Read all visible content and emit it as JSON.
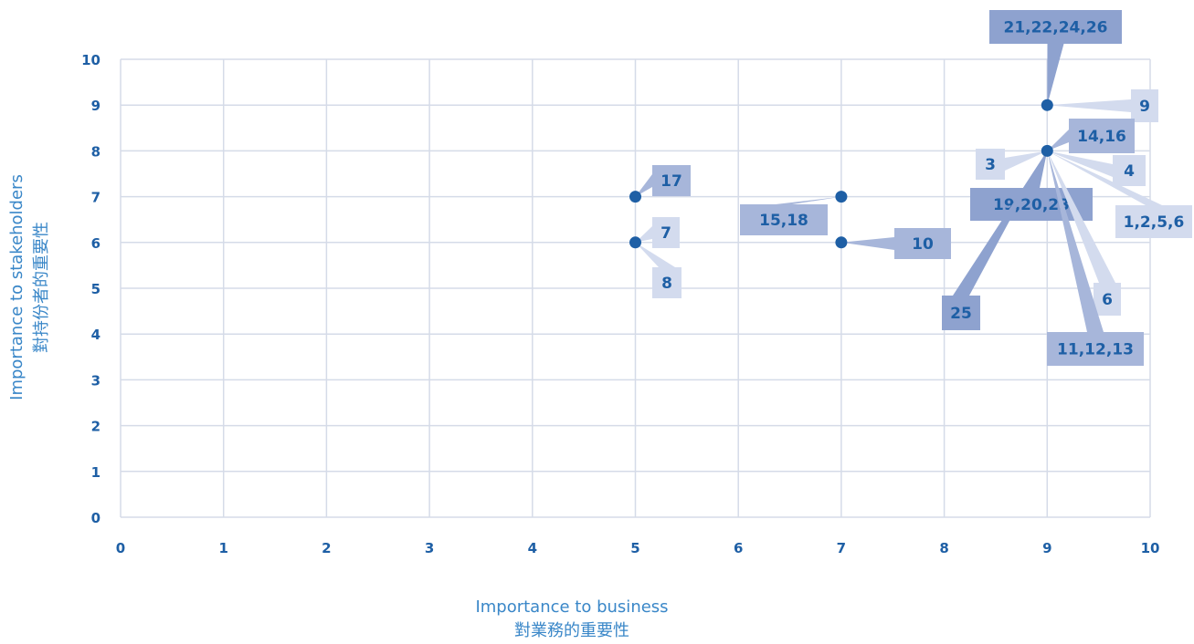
{
  "chart_data": {
    "type": "scatter",
    "xlabel": [
      "Importance to business",
      "對業務的重要性"
    ],
    "ylabel": [
      "Importance to stakeholders",
      "對持份者的重要性"
    ],
    "xlim": [
      0,
      10
    ],
    "ylim": [
      0,
      10
    ],
    "xticks": [
      "0",
      "1",
      "2",
      "3",
      "4",
      "5",
      "6",
      "7",
      "8",
      "9",
      "10"
    ],
    "yticks": [
      "0",
      "1",
      "2",
      "3",
      "4",
      "5",
      "6",
      "7",
      "8",
      "9",
      "10"
    ],
    "grid": true,
    "points": [
      {
        "x": 5,
        "y": 7
      },
      {
        "x": 5,
        "y": 6
      },
      {
        "x": 7,
        "y": 7
      },
      {
        "x": 7,
        "y": 6
      },
      {
        "x": 9,
        "y": 9
      },
      {
        "x": 9,
        "y": 8
      }
    ],
    "annotations": [
      {
        "text": "17",
        "x": 5,
        "y": 7
      },
      {
        "text": "7",
        "x": 5,
        "y": 6
      },
      {
        "text": "8",
        "x": 5,
        "y": 6
      },
      {
        "text": "15,18",
        "x": 7,
        "y": 7
      },
      {
        "text": "10",
        "x": 7,
        "y": 6
      },
      {
        "text": "21,22,24,26",
        "x": 9,
        "y": 9
      },
      {
        "text": "9",
        "x": 9,
        "y": 9
      },
      {
        "text": "14,16",
        "x": 9,
        "y": 8
      },
      {
        "text": "3",
        "x": 9,
        "y": 8
      },
      {
        "text": "4",
        "x": 9,
        "y": 8
      },
      {
        "text": "19,20,23",
        "x": 9,
        "y": 8
      },
      {
        "text": "1,2,5,6",
        "x": 9,
        "y": 8
      },
      {
        "text": "6",
        "x": 9,
        "y": 8
      },
      {
        "text": "25",
        "x": 9,
        "y": 8
      },
      {
        "text": "11,12,13",
        "x": 9,
        "y": 8
      }
    ],
    "colors": {
      "point": "#1e5fa5",
      "grid": "#d5dbe8",
      "tick": "#1e5fa5",
      "axis_title": "#3a87c8",
      "callout_dark": "#8ea2cf",
      "callout_mid": "#a7b6da",
      "callout_light": "#d3dbee"
    }
  }
}
